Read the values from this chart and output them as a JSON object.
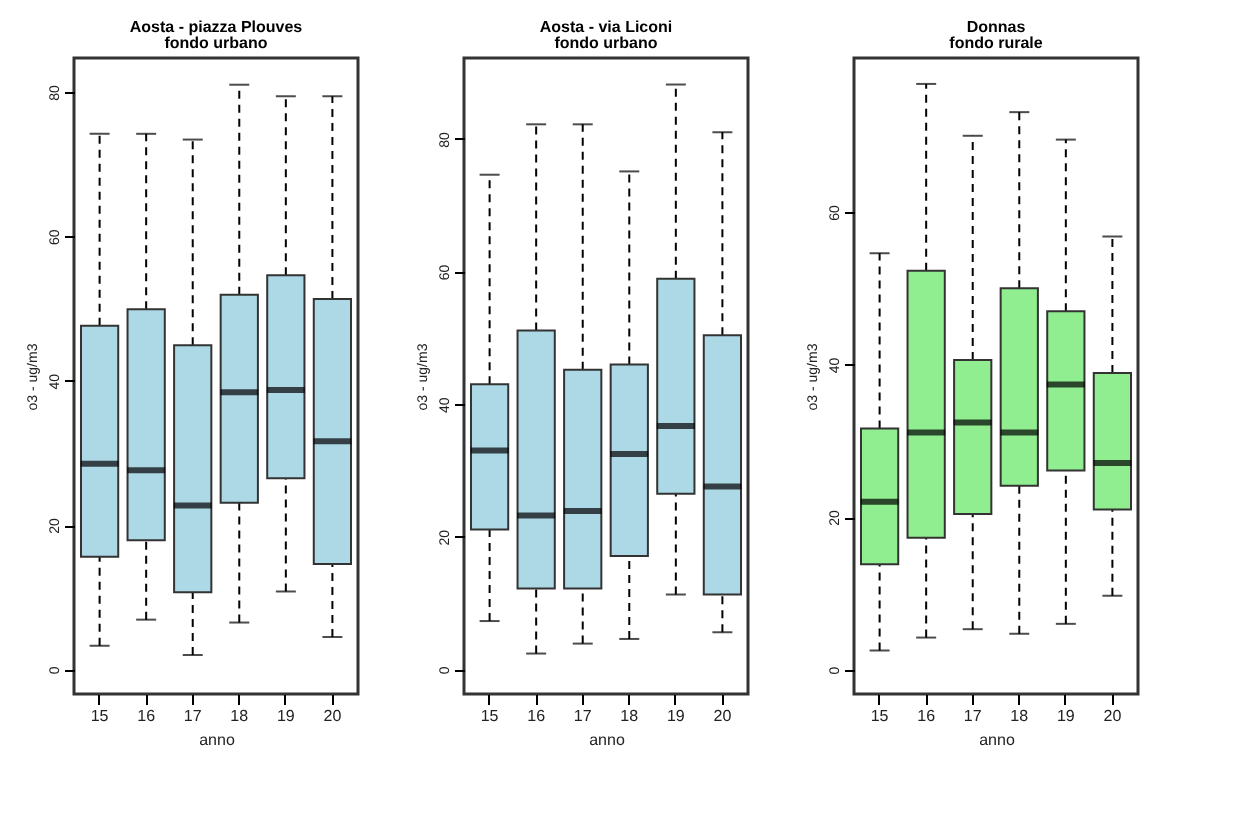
{
  "chart_data": [
    {
      "type": "box",
      "title": "Aosta - piazza Plouves",
      "subtitle": "fondo urbano",
      "xlabel": "anno",
      "ylabel": "o3 - ug/m3",
      "categories": [
        "15",
        "16",
        "17",
        "18",
        "19",
        "20"
      ],
      "ylim": [
        -3.4,
        84.7
      ],
      "yticks": [
        0,
        20,
        40,
        60,
        80
      ],
      "grid": false,
      "line_style": "dashed",
      "series": [
        {
          "color": "#add8e6",
          "boxes": [
            {
              "low": 3.3,
              "q1": 15.6,
              "median": 28.5,
              "q3": 47.6,
              "high": 74.2
            },
            {
              "low": 6.9,
              "q1": 17.9,
              "median": 27.6,
              "q3": 49.9,
              "high": 74.2
            },
            {
              "low": 2.0,
              "q1": 10.7,
              "median": 22.7,
              "q3": 44.9,
              "high": 73.4
            },
            {
              "low": 6.5,
              "q1": 23.1,
              "median": 38.4,
              "q3": 51.9,
              "high": 81.0
            },
            {
              "low": 10.8,
              "q1": 26.5,
              "median": 38.7,
              "q3": 54.6,
              "high": 79.4
            },
            {
              "low": 4.5,
              "q1": 14.6,
              "median": 31.6,
              "q3": 51.3,
              "high": 79.4
            }
          ]
        }
      ]
    },
    {
      "type": "box",
      "title": "Aosta - via Liconi",
      "subtitle": "fondo urbano",
      "xlabel": "anno",
      "ylabel": "o3 - ug/m3",
      "categories": [
        "15",
        "16",
        "17",
        "18",
        "19",
        "20"
      ],
      "ylim": [
        -3.7,
        92.2
      ],
      "yticks": [
        0,
        20,
        40,
        60,
        80
      ],
      "grid": false,
      "line_style": "dashed",
      "series": [
        {
          "color": "#add8e6",
          "boxes": [
            {
              "low": 7.3,
              "q1": 21.1,
              "median": 33.0,
              "q3": 43.0,
              "high": 74.6
            },
            {
              "low": 2.4,
              "q1": 12.2,
              "median": 23.2,
              "q3": 51.1,
              "high": 82.2
            },
            {
              "low": 3.9,
              "q1": 12.2,
              "median": 23.9,
              "q3": 45.2,
              "high": 82.2
            },
            {
              "low": 4.6,
              "q1": 17.1,
              "median": 32.5,
              "q3": 46.0,
              "high": 75.1
            },
            {
              "low": 11.3,
              "q1": 26.5,
              "median": 36.7,
              "q3": 58.9,
              "high": 88.2
            },
            {
              "low": 5.6,
              "q1": 11.3,
              "median": 27.6,
              "q3": 50.4,
              "high": 81.0
            }
          ]
        }
      ]
    },
    {
      "type": "box",
      "title": "Donnas",
      "subtitle": "fondo rurale",
      "xlabel": "anno",
      "ylabel": "o3 - ug/m3",
      "categories": [
        "15",
        "16",
        "17",
        "18",
        "19",
        "20"
      ],
      "ylim": [
        -3.2,
        80.2
      ],
      "yticks": [
        0,
        20,
        40,
        60
      ],
      "grid": false,
      "line_style": "dashed",
      "series": [
        {
          "color": "#90ee90",
          "boxes": [
            {
              "low": 2.5,
              "q1": 13.8,
              "median": 22.0,
              "q3": 31.6,
              "high": 54.6
            },
            {
              "low": 4.2,
              "q1": 17.3,
              "median": 31.1,
              "q3": 52.3,
              "high": 76.8
            },
            {
              "low": 5.3,
              "q1": 20.4,
              "median": 32.4,
              "q3": 40.6,
              "high": 70.0
            },
            {
              "low": 4.7,
              "q1": 24.1,
              "median": 31.1,
              "q3": 50.0,
              "high": 73.1
            },
            {
              "low": 6.0,
              "q1": 26.1,
              "median": 37.4,
              "q3": 47.0,
              "high": 69.5
            },
            {
              "low": 9.7,
              "q1": 21.0,
              "median": 27.1,
              "q3": 38.9,
              "high": 56.8
            }
          ]
        }
      ]
    }
  ]
}
